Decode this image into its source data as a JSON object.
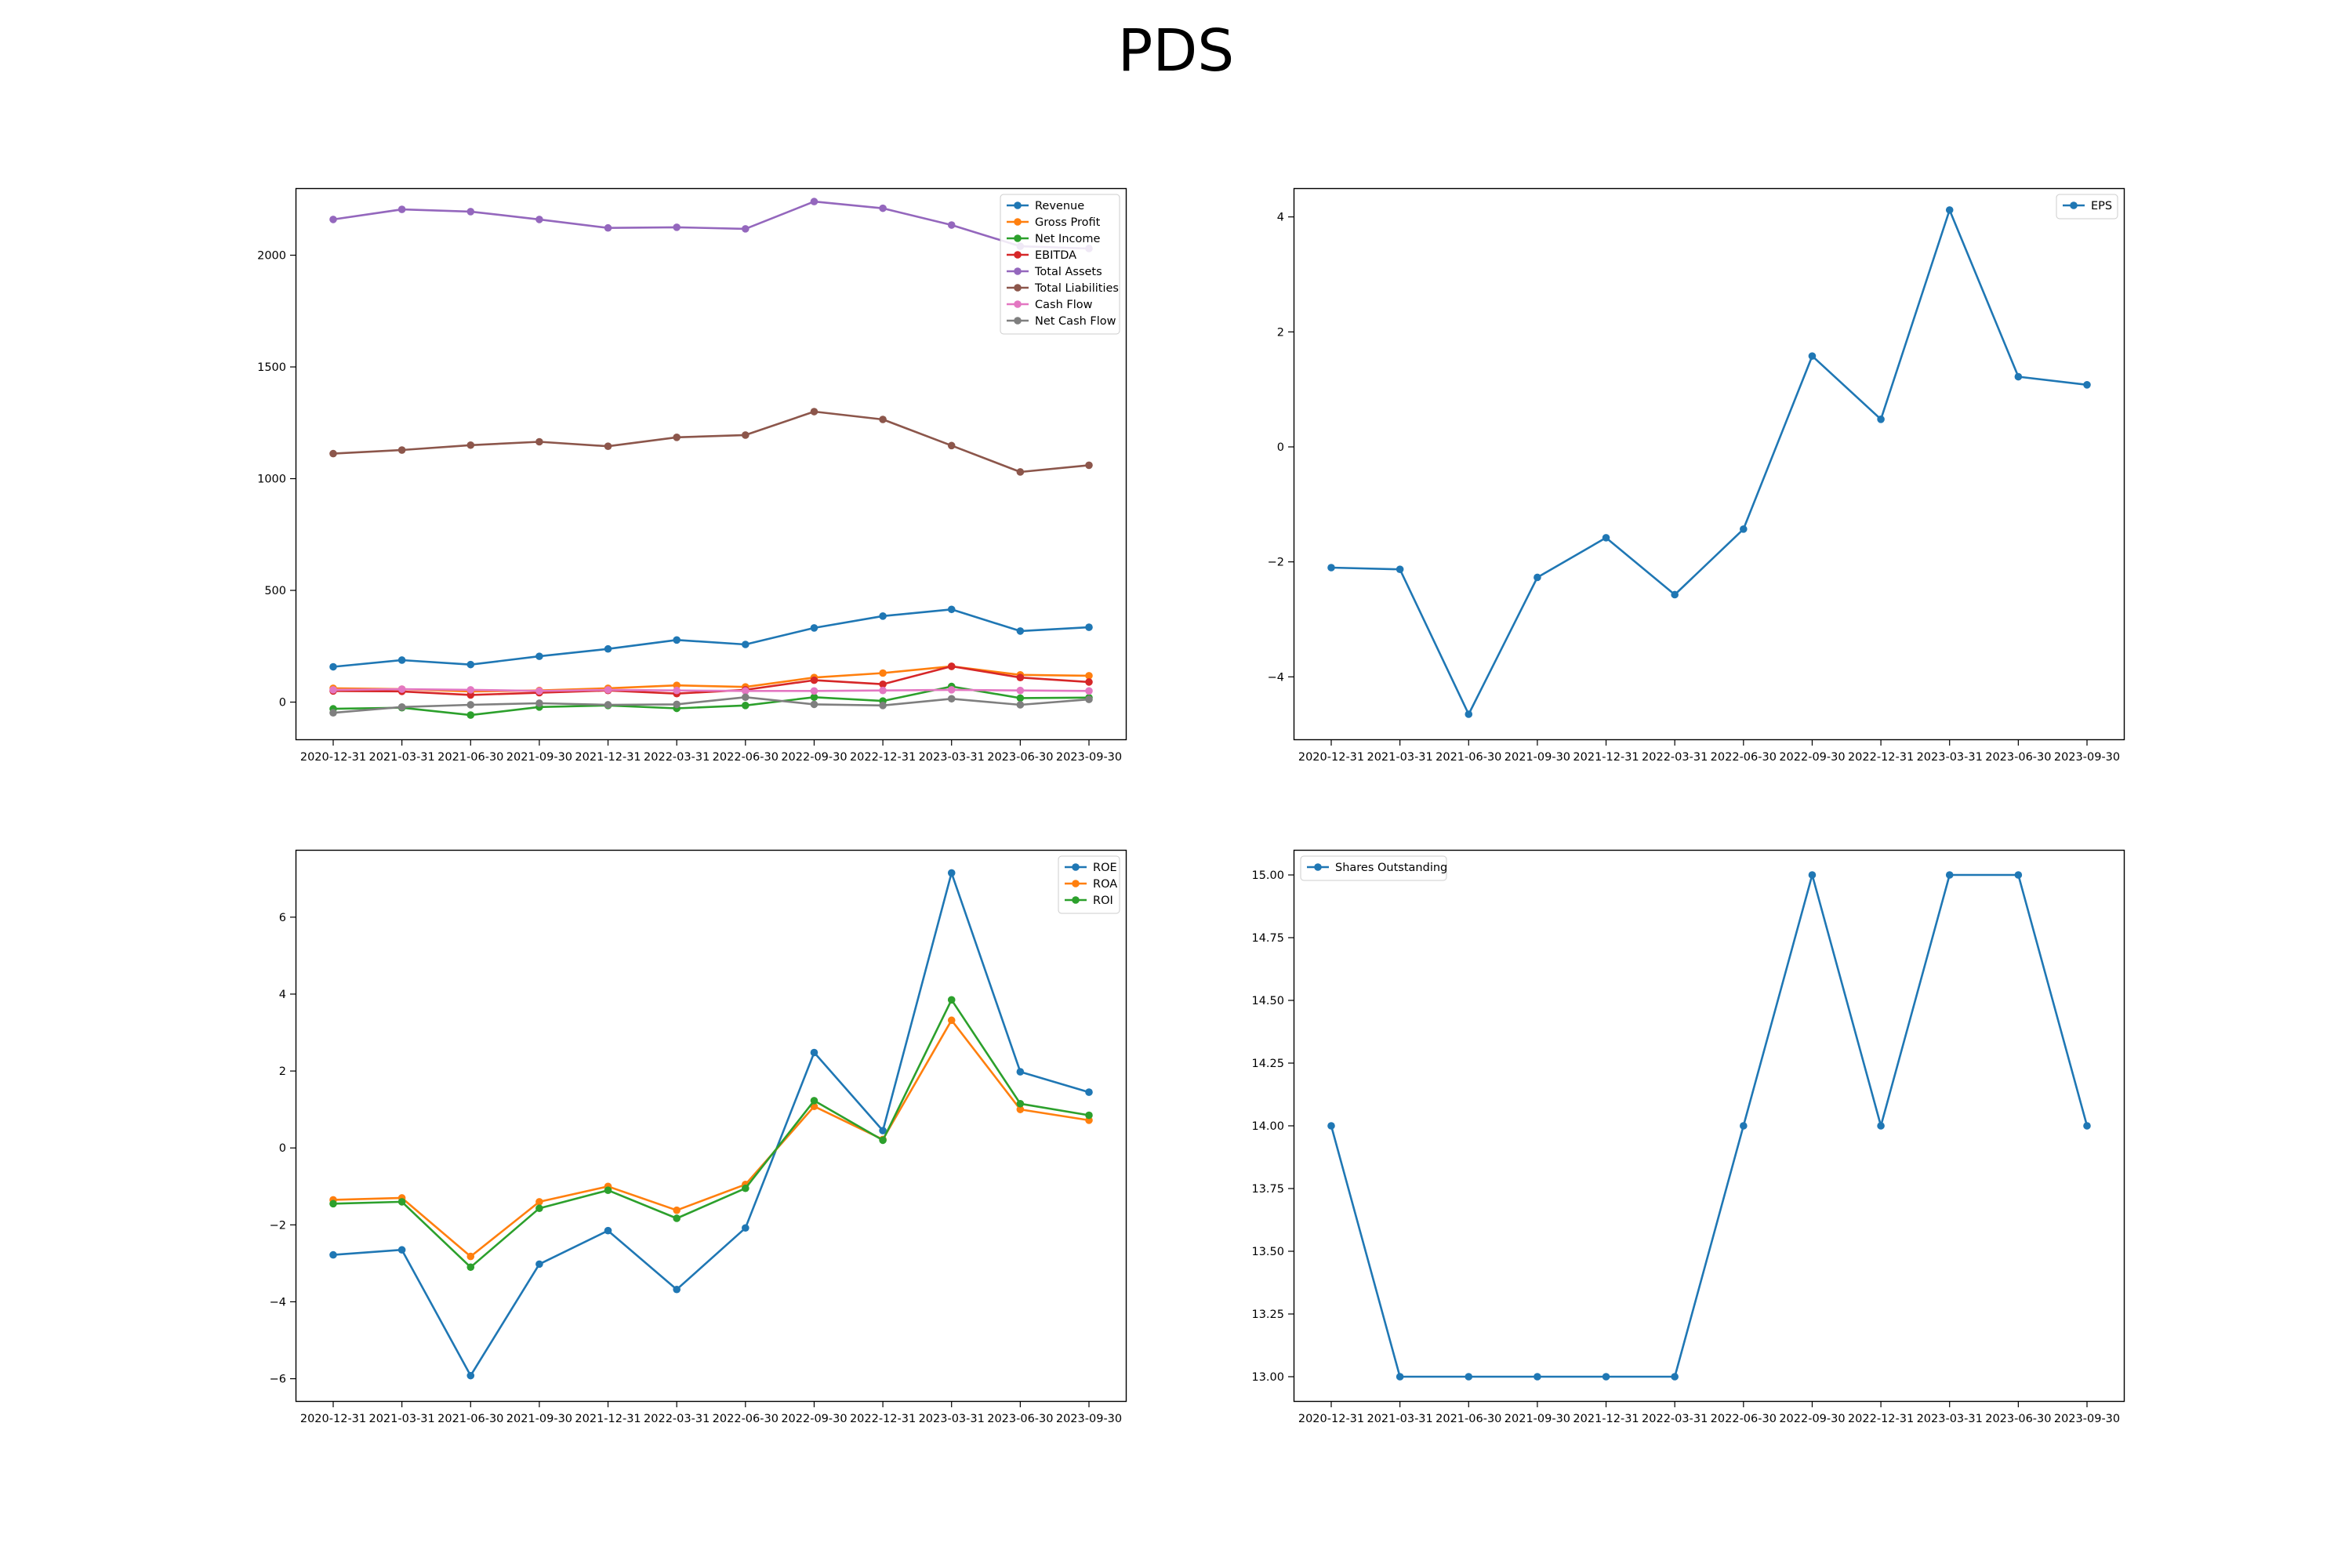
{
  "page": {
    "title": "PDS"
  },
  "colors": {
    "blue": "#1f77b4",
    "orange": "#ff7f0e",
    "green": "#2ca02c",
    "red": "#d62728",
    "purple": "#9467bd",
    "brown": "#8c564b",
    "pink": "#e377c2",
    "gray": "#7f7f7f"
  },
  "chart_data": [
    {
      "type": "line",
      "title": "",
      "xlabel": "",
      "ylabel": "",
      "x": [
        "2020-12-31",
        "2021-03-31",
        "2021-06-30",
        "2021-09-30",
        "2021-12-31",
        "2022-03-31",
        "2022-06-30",
        "2022-09-30",
        "2022-12-31",
        "2023-03-31",
        "2023-06-30",
        "2023-09-30"
      ],
      "ylim": [
        -170,
        2300
      ],
      "yticks": [
        0,
        500,
        1000,
        1500,
        2000
      ],
      "yticklabels": [
        "0",
        "500",
        "1000",
        "1500",
        "2000"
      ],
      "grid": false,
      "legend": "top-right",
      "series": [
        {
          "name": "Revenue",
          "color": "#1f77b4",
          "values": [
            158,
            188,
            168,
            205,
            238,
            278,
            258,
            332,
            385,
            415,
            318,
            335
          ]
        },
        {
          "name": "Gross Profit",
          "color": "#ff7f0e",
          "values": [
            62,
            58,
            48,
            52,
            62,
            75,
            68,
            110,
            130,
            160,
            122,
            118
          ]
        },
        {
          "name": "Net Income",
          "color": "#2ca02c",
          "values": [
            -30,
            -25,
            -58,
            -22,
            -15,
            -28,
            -15,
            22,
            5,
            70,
            18,
            20
          ]
        },
        {
          "name": "EBITDA",
          "color": "#d62728",
          "values": [
            50,
            48,
            32,
            42,
            52,
            38,
            55,
            98,
            80,
            160,
            110,
            90
          ]
        },
        {
          "name": "Total Assets",
          "color": "#9467bd",
          "values": [
            2160,
            2205,
            2195,
            2160,
            2122,
            2125,
            2118,
            2240,
            2210,
            2135,
            2040,
            2030
          ]
        },
        {
          "name": "Total Liabilities",
          "color": "#8c564b",
          "values": [
            1112,
            1128,
            1150,
            1165,
            1145,
            1185,
            1195,
            1300,
            1265,
            1148,
            1030,
            1060
          ]
        },
        {
          "name": "Cash Flow",
          "color": "#e377c2",
          "values": [
            55,
            58,
            55,
            50,
            55,
            52,
            50,
            50,
            52,
            55,
            52,
            50
          ]
        },
        {
          "name": "Net Cash Flow",
          "color": "#7f7f7f",
          "values": [
            -48,
            -22,
            -12,
            -5,
            -12,
            -10,
            22,
            -10,
            -15,
            15,
            -12,
            12
          ]
        }
      ]
    },
    {
      "type": "line",
      "title": "",
      "xlabel": "",
      "ylabel": "",
      "x": [
        "2020-12-31",
        "2021-03-31",
        "2021-06-30",
        "2021-09-30",
        "2021-12-31",
        "2022-03-31",
        "2022-06-30",
        "2022-09-30",
        "2022-12-31",
        "2023-03-31",
        "2023-06-30",
        "2023-09-30"
      ],
      "ylim": [
        -5.1,
        4.5
      ],
      "yticks": [
        -4,
        -2,
        0,
        2,
        4
      ],
      "yticklabels": [
        "−4",
        "−2",
        "0",
        "2",
        "4"
      ],
      "grid": false,
      "legend": "top-right",
      "series": [
        {
          "name": "EPS",
          "color": "#1f77b4",
          "values": [
            -2.1,
            -2.13,
            -4.65,
            -2.27,
            -1.58,
            -2.57,
            -1.43,
            1.58,
            0.48,
            4.12,
            1.22,
            1.08
          ]
        }
      ]
    },
    {
      "type": "line",
      "title": "",
      "xlabel": "",
      "ylabel": "",
      "x": [
        "2020-12-31",
        "2021-03-31",
        "2021-06-30",
        "2021-09-30",
        "2021-12-31",
        "2022-03-31",
        "2022-06-30",
        "2022-09-30",
        "2022-12-31",
        "2023-03-31",
        "2023-06-30",
        "2023-09-30"
      ],
      "ylim": [
        -6.6,
        7.75
      ],
      "yticks": [
        -6,
        -4,
        -2,
        0,
        2,
        4,
        6
      ],
      "yticklabels": [
        "−6",
        "−4",
        "−2",
        "0",
        "2",
        "4",
        "6"
      ],
      "grid": false,
      "legend": "top-right",
      "series": [
        {
          "name": "ROE",
          "color": "#1f77b4",
          "values": [
            -2.78,
            -2.65,
            -5.92,
            -3.02,
            -2.15,
            -3.68,
            -2.08,
            2.48,
            0.45,
            7.15,
            1.98,
            1.45
          ]
        },
        {
          "name": "ROA",
          "color": "#ff7f0e",
          "values": [
            -1.35,
            -1.3,
            -2.82,
            -1.4,
            -1.0,
            -1.62,
            -0.95,
            1.08,
            0.22,
            3.32,
            1.0,
            0.72
          ]
        },
        {
          "name": "ROI",
          "color": "#2ca02c",
          "values": [
            -1.45,
            -1.4,
            -3.1,
            -1.57,
            -1.1,
            -1.83,
            -1.05,
            1.23,
            0.2,
            3.85,
            1.15,
            0.85
          ]
        }
      ]
    },
    {
      "type": "line",
      "title": "",
      "xlabel": "",
      "ylabel": "",
      "x": [
        "2020-12-31",
        "2021-03-31",
        "2021-06-30",
        "2021-09-30",
        "2021-12-31",
        "2022-03-31",
        "2022-06-30",
        "2022-09-30",
        "2022-12-31",
        "2023-03-31",
        "2023-06-30",
        "2023-09-30"
      ],
      "ylim": [
        12.9,
        15.1
      ],
      "yticks": [
        13.0,
        13.25,
        13.5,
        13.75,
        14.0,
        14.25,
        14.5,
        14.75,
        15.0
      ],
      "yticklabels": [
        "13.00",
        "13.25",
        "13.50",
        "13.75",
        "14.00",
        "14.25",
        "14.50",
        "14.75",
        "15.00"
      ],
      "grid": false,
      "legend": "top-left",
      "series": [
        {
          "name": "Shares Outstanding",
          "color": "#1f77b4",
          "values": [
            14,
            13,
            13,
            13,
            13,
            13,
            14,
            15,
            14,
            15,
            15,
            14
          ]
        }
      ]
    }
  ]
}
